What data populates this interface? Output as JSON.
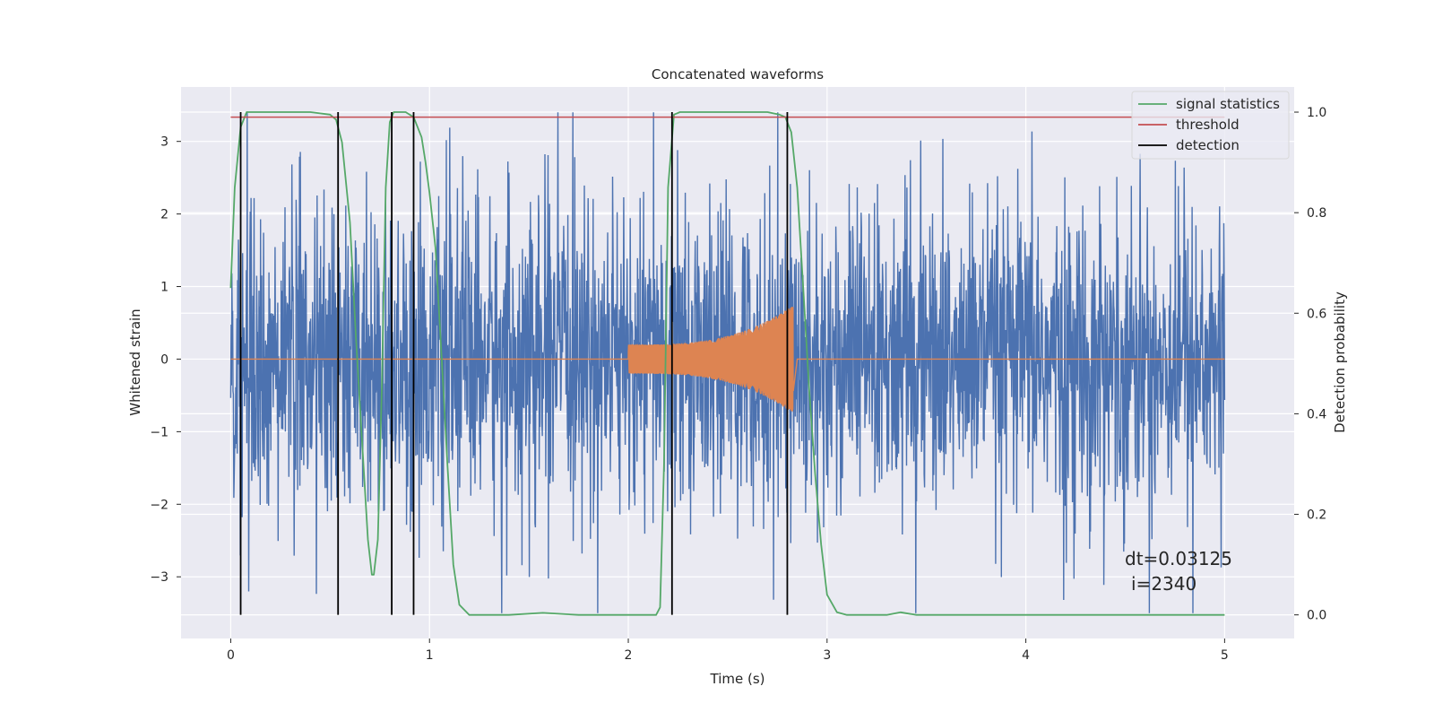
{
  "chart_data": {
    "type": "line",
    "title": "Concatenated waveforms",
    "xlabel": "Time (s)",
    "ylabel": "Whitened strain",
    "ylabel_right": "Detection probability",
    "xlim": [
      -0.25,
      5.35
    ],
    "ylim": [
      -3.85,
      3.75
    ],
    "ylim_right": [
      -0.047,
      1.05
    ],
    "x_ticks": [
      0,
      1,
      2,
      3,
      4,
      5
    ],
    "x_tick_labels": [
      "0",
      "1",
      "2",
      "3",
      "4",
      "5"
    ],
    "y_ticks": [
      -3,
      -2,
      -1,
      0,
      1,
      2,
      3
    ],
    "y_tick_labels": [
      "−3",
      "−2",
      "−1",
      "0",
      "1",
      "2",
      "3"
    ],
    "y_right_ticks": [
      0.0,
      0.2,
      0.4,
      0.6,
      0.8,
      1.0
    ],
    "y_right_tick_labels": [
      "0.0",
      "0.2",
      "0.4",
      "0.6",
      "0.8",
      "1.0"
    ],
    "grid": true,
    "legend_position": "top-right",
    "annotation": {
      "line1": "dt=0.03125",
      "line2": "i=2340"
    },
    "series": [
      {
        "name": "",
        "axis": "left",
        "color": "#4c72b0",
        "description_kind": "noise",
        "x_range": [
          0,
          5
        ],
        "envelope_min": -3.5,
        "envelope_max": 3.4
      },
      {
        "name": "",
        "axis": "left",
        "color": "#dd8452",
        "description_kind": "chirp",
        "x_range": [
          2.0,
          2.83
        ],
        "start_amplitude": 0.2,
        "end_amplitude": 0.75
      },
      {
        "name": "signal statistics",
        "axis": "right",
        "color": "#55a868",
        "x": [
          0.0,
          0.02,
          0.05,
          0.08,
          0.1,
          0.15,
          0.2,
          0.3,
          0.4,
          0.5,
          0.53,
          0.56,
          0.6,
          0.63,
          0.66,
          0.69,
          0.71,
          0.72,
          0.74,
          0.76,
          0.78,
          0.8,
          0.82,
          0.84,
          0.88,
          0.92,
          0.96,
          0.98,
          1.0,
          1.03,
          1.06,
          1.09,
          1.12,
          1.15,
          1.2,
          1.4,
          1.57,
          1.75,
          2.0,
          2.14,
          2.16,
          2.18,
          2.2,
          2.23,
          2.26,
          2.3,
          2.5,
          2.7,
          2.76,
          2.79,
          2.82,
          2.85,
          2.88,
          2.91,
          2.94,
          2.97,
          3.0,
          3.05,
          3.1,
          3.3,
          3.37,
          3.45,
          4.0,
          4.5,
          5.0
        ],
        "y": [
          0.65,
          0.85,
          0.97,
          1.0,
          1.0,
          1.0,
          1.0,
          1.0,
          1.0,
          0.995,
          0.985,
          0.94,
          0.78,
          0.55,
          0.35,
          0.15,
          0.08,
          0.08,
          0.15,
          0.45,
          0.85,
          0.98,
          1.0,
          1.0,
          1.0,
          0.99,
          0.95,
          0.9,
          0.84,
          0.73,
          0.52,
          0.3,
          0.1,
          0.02,
          0.0,
          0.0,
          0.004,
          0.0,
          0.0,
          0.0,
          0.015,
          0.3,
          0.85,
          0.995,
          1.0,
          1.0,
          1.0,
          1.0,
          0.995,
          0.99,
          0.96,
          0.85,
          0.65,
          0.45,
          0.28,
          0.14,
          0.04,
          0.005,
          0.0,
          0.0,
          0.005,
          0.0,
          0.0,
          0.0,
          0.0
        ]
      },
      {
        "name": "threshold",
        "axis": "right",
        "color": "#c44e52",
        "x": [
          0,
          5
        ],
        "y": [
          0.99,
          0.99
        ]
      },
      {
        "name": "detection",
        "axis": "right",
        "color": "#000000",
        "type": "vlines",
        "x": [
          0.05,
          0.54,
          0.81,
          0.92,
          2.22,
          2.8
        ],
        "ymin": 0.0,
        "ymax": 1.0
      }
    ]
  }
}
